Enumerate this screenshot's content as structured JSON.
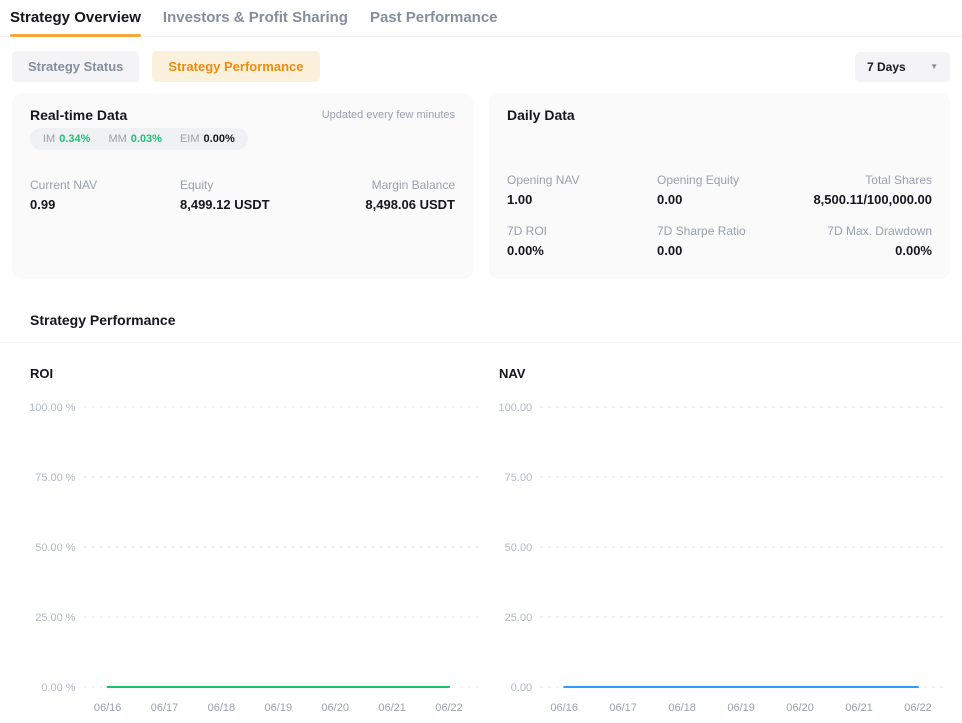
{
  "tabs": {
    "items": [
      {
        "label": "Strategy Overview",
        "active": true
      },
      {
        "label": "Investors & Profit Sharing",
        "active": false
      },
      {
        "label": "Past Performance",
        "active": false
      }
    ]
  },
  "subtabs": {
    "status_label": "Strategy Status",
    "performance_label": "Strategy Performance"
  },
  "period_selector": {
    "value": "7 Days",
    "icon": "caret-down"
  },
  "realtime": {
    "title": "Real-time Data",
    "note": "Updated every few minutes",
    "margin_badges": [
      {
        "label": "IM",
        "value": "0.34%",
        "highlight": true
      },
      {
        "label": "MM",
        "value": "0.03%",
        "highlight": true
      },
      {
        "label": "EIM",
        "value": "0.00%",
        "highlight": false
      }
    ],
    "stats": [
      {
        "label": "Current NAV",
        "value": "0.99"
      },
      {
        "label": "Equity",
        "value": "8,499.12 USDT"
      },
      {
        "label": "Margin Balance",
        "value": "8,498.06 USDT"
      }
    ]
  },
  "daily": {
    "title": "Daily Data",
    "rows": [
      [
        {
          "label": "Opening NAV",
          "value": "1.00"
        },
        {
          "label": "Opening Equity",
          "value": "0.00"
        },
        {
          "label": "Total Shares",
          "value": "8,500.11/100,000.00"
        }
      ],
      [
        {
          "label": "7D ROI",
          "value": "0.00%"
        },
        {
          "label": "7D Sharpe Ratio",
          "value": "0.00"
        },
        {
          "label": "7D Max. Drawdown",
          "value": "0.00%"
        }
      ]
    ]
  },
  "performance": {
    "title": "Strategy Performance"
  },
  "colors": {
    "accent_orange": "#ee8c0e",
    "underline_orange": "#f8a83a",
    "positive_green": "#20c078",
    "roi_line": "#17c26e",
    "nav_line": "#2e9bff"
  },
  "chart_data": [
    {
      "type": "line",
      "title": "ROI",
      "x": [
        "06/16",
        "06/17",
        "06/18",
        "06/19",
        "06/20",
        "06/21",
        "06/22"
      ],
      "values": [
        0,
        0,
        0,
        0,
        0,
        0,
        0
      ],
      "y_ticks": [
        "100.00 %",
        "75.00 %",
        "50.00 %",
        "25.00 %",
        "0.00 %"
      ],
      "ylim": [
        0,
        100
      ],
      "xlabel": "",
      "ylabel": "ROI",
      "grid": "dashed-horizontal",
      "legend_position": "none",
      "line_color": "#17c26e"
    },
    {
      "type": "line",
      "title": "NAV",
      "x": [
        "06/16",
        "06/17",
        "06/18",
        "06/19",
        "06/20",
        "06/21",
        "06/22"
      ],
      "values": [
        0,
        0,
        0,
        0,
        0,
        0,
        0
      ],
      "y_ticks": [
        "100.00",
        "75.00",
        "50.00",
        "25.00",
        "0.00"
      ],
      "ylim": [
        0,
        100
      ],
      "xlabel": "",
      "ylabel": "NAV",
      "grid": "dashed-horizontal",
      "legend_position": "none",
      "line_color": "#2e9bff"
    }
  ]
}
